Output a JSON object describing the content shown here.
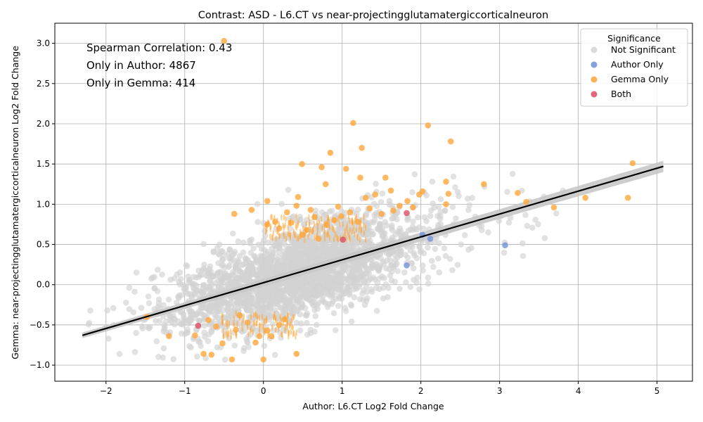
{
  "chart_data": {
    "type": "scatter",
    "title": "Contrast: ASD - L6.CT vs near-projectingglutamatergiccorticalneuron",
    "xlabel": "Author: L6.CT Log2 Fold Change",
    "ylabel": "Gemma: near-projectingglutamatergiccorticalneuron Log2 Fold Change",
    "xlim": [
      -2.65,
      5.45
    ],
    "ylim": [
      -1.2,
      3.25
    ],
    "xticks": [
      -2,
      -1,
      0,
      1,
      2,
      3,
      4,
      5
    ],
    "yticks": [
      -1.0,
      -0.5,
      0.0,
      0.5,
      1.0,
      1.5,
      2.0,
      2.5,
      3.0
    ],
    "grid": true,
    "legend": {
      "title": "Significance",
      "position": "top-right",
      "entries": [
        {
          "label": "Not Significant",
          "color": "#d3d3d3"
        },
        {
          "label": "Author Only",
          "color": "#6f8fd8"
        },
        {
          "label": "Gemma Only",
          "color": "#ffa537"
        },
        {
          "label": "Both",
          "color": "#dc4a62"
        }
      ]
    },
    "annotations": [
      "Spearman Correlation: 0.43",
      "Only in Author: 4867",
      "Only in Gemma: 414"
    ],
    "regression_line": {
      "x": [
        -2.3,
        5.08
      ],
      "y": [
        -0.63,
        1.47
      ],
      "color": "#000000"
    },
    "series": [
      {
        "name": "Gemma Only",
        "color": "#ffa537",
        "points": [
          [
            -0.5,
            3.03
          ],
          [
            1.14,
            2.01
          ],
          [
            2.09,
            1.98
          ],
          [
            2.38,
            1.78
          ],
          [
            1.25,
            1.7
          ],
          [
            0.85,
            1.64
          ],
          [
            4.69,
            1.51
          ],
          [
            0.49,
            1.5
          ],
          [
            0.74,
            1.46
          ],
          [
            1.05,
            1.44
          ],
          [
            1.23,
            1.33
          ],
          [
            1.55,
            1.33
          ],
          [
            2.32,
            1.28
          ],
          [
            2.8,
            1.25
          ],
          [
            0.79,
            1.25
          ],
          [
            3.23,
            1.14
          ],
          [
            2.35,
            1.13
          ],
          [
            4.09,
            1.08
          ],
          [
            4.63,
            1.08
          ],
          [
            3.34,
            1.03
          ],
          [
            2.32,
            1.0
          ],
          [
            3.69,
            0.96
          ],
          [
            1.83,
            1.04
          ],
          [
            1.98,
            1.12
          ],
          [
            2.02,
            1.16
          ],
          [
            1.73,
            0.98
          ],
          [
            1.62,
            1.17
          ],
          [
            1.42,
            1.12
          ],
          [
            1.3,
            1.08
          ],
          [
            0.05,
            1.04
          ],
          [
            0.44,
            1.09
          ],
          [
            0.99,
            0.85
          ],
          [
            0.6,
            0.93
          ],
          [
            0.3,
            0.9
          ],
          [
            -0.15,
            0.93
          ],
          [
            -0.37,
            0.88
          ],
          [
            -1.2,
            -0.64
          ],
          [
            -1.48,
            -0.4
          ],
          [
            -0.76,
            -0.86
          ],
          [
            -0.66,
            -0.87
          ],
          [
            -0.4,
            -0.93
          ],
          [
            0.0,
            -0.93
          ],
          [
            0.42,
            -0.86
          ],
          [
            -0.52,
            -0.73
          ],
          [
            -0.1,
            -0.72
          ],
          [
            -0.05,
            -0.64
          ],
          [
            0.1,
            -0.64
          ],
          [
            0.27,
            -0.43
          ],
          [
            -0.87,
            -0.63
          ],
          [
            -0.6,
            -0.52
          ],
          [
            -0.35,
            -0.56
          ],
          [
            0.05,
            -0.57
          ],
          [
            -0.2,
            -0.47
          ],
          [
            0.2,
            -0.5
          ],
          [
            -0.7,
            -0.44
          ],
          [
            -0.3,
            -0.38
          ],
          [
            0.5,
            0.62
          ],
          [
            0.7,
            0.57
          ],
          [
            0.9,
            0.8
          ],
          [
            0.2,
            0.7
          ],
          [
            0.35,
            0.77
          ],
          [
            1.1,
            0.9
          ],
          [
            1.35,
            0.95
          ],
          [
            1.5,
            0.88
          ],
          [
            1.65,
            0.92
          ],
          [
            1.9,
            0.96
          ],
          [
            0.55,
            0.68
          ],
          [
            0.05,
            0.75
          ],
          [
            0.15,
            0.78
          ],
          [
            0.8,
            0.74
          ],
          [
            0.65,
            0.84
          ],
          [
            1.2,
            0.78
          ],
          [
            0.95,
            0.97
          ],
          [
            0.42,
            0.98
          ]
        ]
      },
      {
        "name": "Author Only",
        "color": "#6f8fd8",
        "points": [
          [
            3.07,
            0.49
          ],
          [
            2.12,
            0.57
          ],
          [
            1.82,
            0.24
          ],
          [
            2.02,
            0.62
          ]
        ]
      },
      {
        "name": "Both",
        "color": "#dc4a62",
        "points": [
          [
            1.82,
            0.89
          ],
          [
            -0.83,
            -0.51
          ],
          [
            1.01,
            0.56
          ]
        ]
      }
    ]
  }
}
